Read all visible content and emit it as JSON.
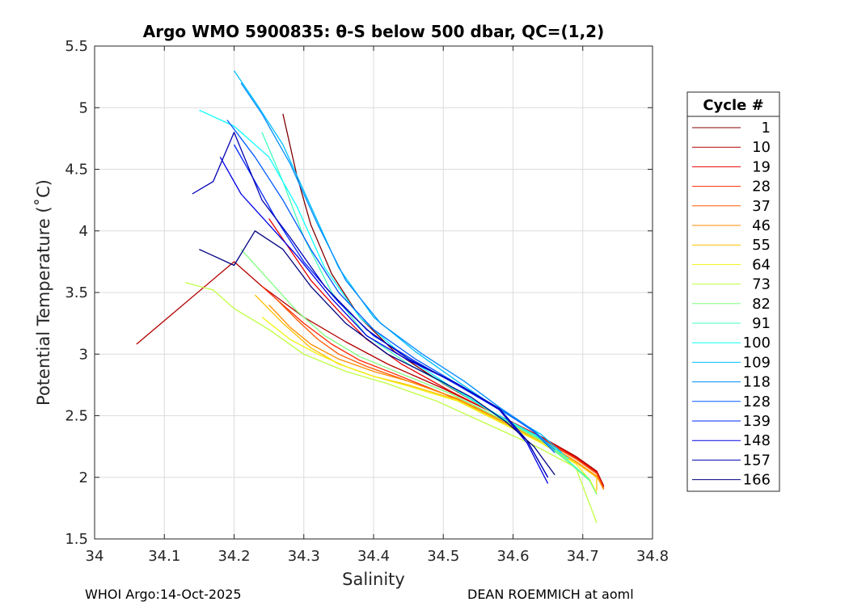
{
  "chart_data": {
    "type": "line",
    "title": "Argo WMO 5900835: θ-S below 500 dbar,  QC=(1,2)",
    "xlabel": "Salinity",
    "ylabel": "Potential Temperature (˚C)",
    "xlim": [
      34.0,
      34.8
    ],
    "ylim": [
      1.5,
      5.5
    ],
    "xticks": [
      "34",
      "34.1",
      "34.2",
      "34.3",
      "34.4",
      "34.5",
      "34.6",
      "34.7",
      "34.8"
    ],
    "yticks": [
      "1.5",
      "2",
      "2.5",
      "3",
      "3.5",
      "4",
      "4.5",
      "5",
      "5.5"
    ],
    "grid": true,
    "legend_title": "Cycle #",
    "legend_position": "right",
    "series": [
      {
        "name": "1",
        "color": "#800000",
        "x": [
          34.27,
          34.29,
          34.31,
          34.34,
          34.38,
          34.43,
          34.5,
          34.58,
          34.64,
          34.69,
          34.72,
          34.73
        ],
        "y": [
          4.95,
          4.45,
          4.05,
          3.65,
          3.3,
          3.02,
          2.76,
          2.5,
          2.33,
          2.17,
          2.05,
          1.93
        ]
      },
      {
        "name": "10",
        "color": "#b30000",
        "x": [
          34.06,
          34.2,
          34.24,
          34.3,
          34.36,
          34.42,
          34.5,
          34.58,
          34.64,
          34.69,
          34.72,
          34.73
        ],
        "y": [
          3.08,
          3.75,
          3.55,
          3.3,
          3.1,
          2.92,
          2.72,
          2.5,
          2.33,
          2.17,
          2.05,
          1.93
        ]
      },
      {
        "name": "19",
        "color": "#e60000",
        "x": [
          34.25,
          34.28,
          34.31,
          34.35,
          34.39,
          34.44,
          34.51,
          34.58,
          34.64,
          34.69,
          34.72,
          34.73
        ],
        "y": [
          4.1,
          3.85,
          3.6,
          3.35,
          3.12,
          2.92,
          2.7,
          2.5,
          2.33,
          2.16,
          2.04,
          1.92
        ]
      },
      {
        "name": "28",
        "color": "#ff2600",
        "x": [
          34.24,
          34.27,
          34.3,
          34.34,
          34.38,
          34.43,
          34.5,
          34.58,
          34.64,
          34.69,
          34.72,
          34.73
        ],
        "y": [
          3.55,
          3.4,
          3.25,
          3.08,
          2.95,
          2.84,
          2.68,
          2.48,
          2.32,
          2.15,
          2.03,
          1.91
        ]
      },
      {
        "name": "37",
        "color": "#ff5900",
        "x": [
          34.26,
          34.29,
          34.32,
          34.35,
          34.39,
          34.44,
          34.51,
          34.58,
          34.64,
          34.69,
          34.72,
          34.73
        ],
        "y": [
          3.45,
          3.28,
          3.12,
          3.0,
          2.9,
          2.8,
          2.66,
          2.48,
          2.31,
          2.15,
          2.03,
          1.91
        ]
      },
      {
        "name": "46",
        "color": "#ff8c00",
        "x": [
          34.25,
          34.28,
          34.31,
          34.35,
          34.4,
          34.45,
          34.52,
          34.58,
          34.64,
          34.69,
          34.72,
          34.73
        ],
        "y": [
          3.4,
          3.22,
          3.08,
          2.96,
          2.86,
          2.78,
          2.64,
          2.47,
          2.3,
          2.13,
          2.01,
          1.9
        ]
      },
      {
        "name": "55",
        "color": "#ffbf00",
        "x": [
          34.23,
          34.27,
          34.31,
          34.35,
          34.4,
          34.45,
          34.52,
          34.58,
          34.64,
          34.69,
          34.72,
          34.72
        ],
        "y": [
          3.48,
          3.25,
          3.05,
          2.92,
          2.82,
          2.75,
          2.63,
          2.46,
          2.29,
          2.12,
          2.0,
          1.89
        ]
      },
      {
        "name": "64",
        "color": "#f2f20d",
        "x": [
          34.24,
          34.28,
          34.32,
          34.36,
          34.4,
          34.45,
          34.52,
          34.58,
          34.64,
          34.69,
          34.71,
          34.72
        ],
        "y": [
          3.3,
          3.12,
          3.0,
          2.9,
          2.82,
          2.74,
          2.62,
          2.45,
          2.28,
          2.11,
          1.98,
          1.87
        ]
      },
      {
        "name": "73",
        "color": "#bfff40",
        "x": [
          34.13,
          34.17,
          34.2,
          34.25,
          34.3,
          34.36,
          34.42,
          34.49,
          34.56,
          34.63,
          34.69,
          34.72
        ],
        "y": [
          3.58,
          3.52,
          3.37,
          3.2,
          3.0,
          2.86,
          2.76,
          2.62,
          2.44,
          2.26,
          2.08,
          1.63
        ]
      },
      {
        "name": "82",
        "color": "#80ff80",
        "x": [
          34.21,
          34.25,
          34.29,
          34.33,
          34.38,
          34.44,
          34.51,
          34.58,
          34.64,
          34.68,
          34.71,
          34.72
        ],
        "y": [
          3.85,
          3.6,
          3.35,
          3.15,
          2.98,
          2.84,
          2.68,
          2.48,
          2.3,
          2.12,
          1.97,
          1.86
        ]
      },
      {
        "name": "91",
        "color": "#40ffbf",
        "x": [
          34.24,
          34.27,
          34.3,
          34.34,
          34.39,
          34.45,
          34.52,
          34.58,
          34.64,
          34.68,
          34.71
        ],
        "y": [
          4.8,
          4.4,
          3.95,
          3.5,
          3.15,
          2.92,
          2.7,
          2.49,
          2.31,
          2.13,
          1.98
        ]
      },
      {
        "name": "100",
        "color": "#0dffff",
        "x": [
          34.15,
          34.2,
          34.25,
          34.29,
          34.33,
          34.38,
          34.44,
          34.51,
          34.58,
          34.64,
          34.68
        ],
        "y": [
          4.98,
          4.85,
          4.6,
          4.2,
          3.7,
          3.3,
          3.0,
          2.74,
          2.5,
          2.32,
          2.15
        ]
      },
      {
        "name": "109",
        "color": "#00bfff",
        "x": [
          34.2,
          34.23,
          34.27,
          34.31,
          34.35,
          34.4,
          34.46,
          34.52,
          34.58,
          34.64,
          34.67
        ],
        "y": [
          5.3,
          5.05,
          4.7,
          4.2,
          3.7,
          3.3,
          3.02,
          2.78,
          2.55,
          2.35,
          2.2
        ]
      },
      {
        "name": "118",
        "color": "#008cff",
        "x": [
          34.21,
          34.24,
          34.28,
          34.32,
          34.36,
          34.41,
          34.47,
          34.53,
          34.58,
          34.63,
          34.66
        ],
        "y": [
          5.2,
          4.95,
          4.55,
          4.05,
          3.6,
          3.25,
          3.0,
          2.78,
          2.57,
          2.38,
          2.22
        ]
      },
      {
        "name": "128",
        "color": "#0059ff",
        "x": [
          34.19,
          34.23,
          34.27,
          34.31,
          34.35,
          34.4,
          34.46,
          34.52,
          34.58,
          34.63,
          34.66
        ],
        "y": [
          4.9,
          4.6,
          4.25,
          3.85,
          3.5,
          3.2,
          2.96,
          2.76,
          2.56,
          2.37,
          2.2
        ]
      },
      {
        "name": "139",
        "color": "#0026ff",
        "x": [
          34.2,
          34.23,
          34.26,
          34.3,
          34.35,
          34.4,
          34.46,
          34.52,
          34.58,
          34.62,
          34.65
        ],
        "y": [
          4.7,
          4.4,
          4.1,
          3.75,
          3.42,
          3.15,
          2.94,
          2.75,
          2.55,
          2.3,
          2.0
        ]
      },
      {
        "name": "148",
        "color": "#0000e6",
        "x": [
          34.18,
          34.21,
          34.25,
          34.29,
          34.34,
          34.39,
          34.45,
          34.52,
          34.58,
          34.62,
          34.65
        ],
        "y": [
          4.6,
          4.3,
          4.05,
          3.8,
          3.45,
          3.15,
          2.95,
          2.76,
          2.55,
          2.28,
          1.95
        ]
      },
      {
        "name": "157",
        "color": "#0000b3",
        "x": [
          34.14,
          34.17,
          34.2,
          34.24,
          34.28,
          34.33,
          34.39,
          34.45,
          34.52,
          34.58,
          34.62,
          34.65
        ],
        "y": [
          4.3,
          4.4,
          4.8,
          4.25,
          3.95,
          3.55,
          3.2,
          2.96,
          2.76,
          2.56,
          2.3,
          2.0
        ]
      },
      {
        "name": "166",
        "color": "#000080",
        "x": [
          34.15,
          34.2,
          34.23,
          34.27,
          34.31,
          34.36,
          34.42,
          34.48,
          34.54,
          34.59,
          34.63,
          34.66
        ],
        "y": [
          3.85,
          3.72,
          4.0,
          3.85,
          3.55,
          3.25,
          3.0,
          2.83,
          2.65,
          2.45,
          2.25,
          2.02
        ]
      }
    ]
  },
  "footer": {
    "left": "WHOI Argo:14-Oct-2025",
    "right": "DEAN ROEMMICH at aoml"
  }
}
